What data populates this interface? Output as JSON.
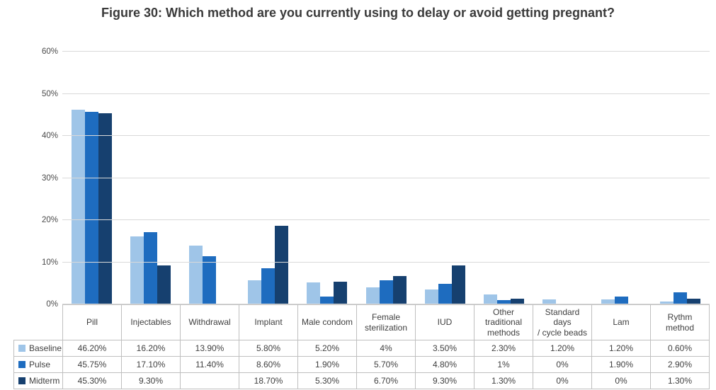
{
  "figure": {
    "title": "Figure 30: Which method are you  currently using to delay or avoid getting pregnant?"
  },
  "chart_data": {
    "type": "bar",
    "title": "Figure 30: Which method are you  currently using to delay or avoid getting pregnant?",
    "categories": [
      "Pill",
      "Injectables",
      "Withdrawal",
      "Implant",
      "Male condom",
      "Female sterilization",
      "IUD",
      "Other traditional methods",
      "Standard days / cycle beads",
      "Lam",
      "Rythm method"
    ],
    "category_labels": [
      "Pill",
      "Injectables",
      "Withdrawal",
      "Implant",
      "Male condom",
      "Female\nsterilization",
      "IUD",
      "Other\ntraditional\nmethods",
      "Standard days\n/ cycle beads",
      "Lam",
      "Rythm\nmethod"
    ],
    "series": [
      {
        "name": "Baseline",
        "color": "#9fc5e8",
        "values": [
          46.2,
          16.2,
          13.9,
          5.8,
          5.2,
          4,
          3.5,
          2.3,
          1.2,
          1.2,
          0.6
        ],
        "labels": [
          "46.20%",
          "16.20%",
          "13.90%",
          "5.80%",
          "5.20%",
          "4%",
          "3.50%",
          "2.30%",
          "1.20%",
          "1.20%",
          "0.60%"
        ]
      },
      {
        "name": "Pulse",
        "color": "#1e6cbf",
        "values": [
          45.75,
          17.1,
          11.4,
          8.6,
          1.9,
          5.7,
          4.8,
          1,
          0,
          1.9,
          2.9
        ],
        "labels": [
          "45.75%",
          "17.10%",
          "11.40%",
          "8.60%",
          "1.90%",
          "5.70%",
          "4.80%",
          "1%",
          "0%",
          "1.90%",
          "2.90%"
        ]
      },
      {
        "name": "Midterm",
        "color": "#16406f",
        "values": [
          45.3,
          9.3,
          null,
          18.7,
          5.3,
          6.7,
          9.3,
          1.3,
          0,
          0,
          1.3
        ],
        "labels": [
          "45.30%",
          "9.30%",
          "",
          "18.70%",
          "5.30%",
          "6.70%",
          "9.30%",
          "1.30%",
          "0%",
          "0%",
          "1.30%"
        ]
      }
    ],
    "ylim": [
      0,
      60
    ],
    "ytick_step": 10,
    "ytick_labels": [
      "0%",
      "10%",
      "20%",
      "30%",
      "40%",
      "50%",
      "60%"
    ],
    "grid": true,
    "legend_position": "table-left",
    "colors": {
      "gridline": "#d9d9d9",
      "table_border": "#bfbfbf",
      "title_text": "#3a3a3a",
      "axis_text": "#4a4a4a"
    }
  }
}
